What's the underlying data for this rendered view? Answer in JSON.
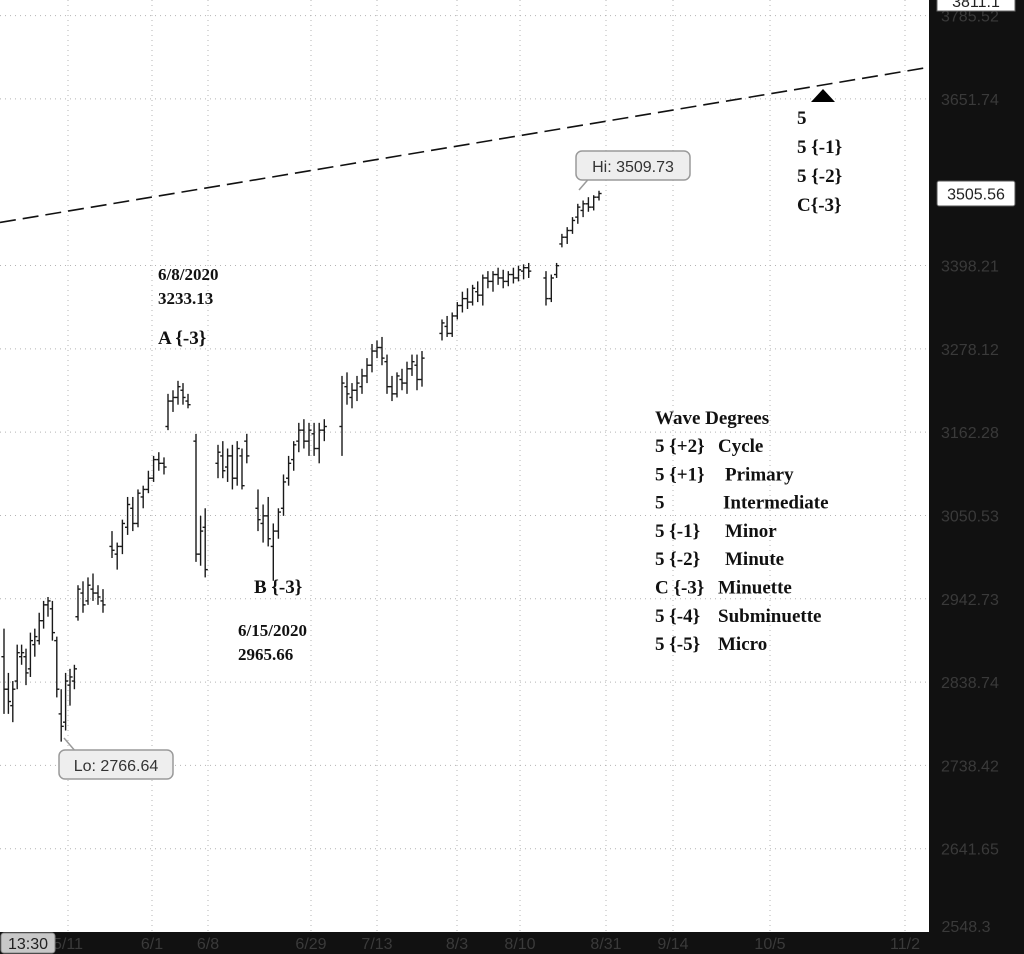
{
  "chart_data": {
    "type": "ohlc",
    "y_axis": {
      "min": 2548.3,
      "max": 3811.1,
      "scale": "log",
      "position": "right",
      "ticks": [
        3785.52,
        3651.74,
        3398.21,
        3278.12,
        3162.28,
        3050.53,
        2942.73,
        2838.74,
        2738.42,
        2641.65
      ],
      "top_label": "3811.1",
      "bottom_label": "2548.3"
    },
    "x_axis": {
      "time_box": "13:30",
      "labels": [
        "5/11",
        "6/1",
        "6/8",
        "6/29",
        "7/13",
        "8/3",
        "8/10",
        "8/31",
        "9/14",
        "10/5",
        "11/2"
      ]
    },
    "grid": true,
    "last_price": "3505.56",
    "high_bubble": "Hi: 3509.73",
    "low_bubble": "Lo: 2766.64",
    "trendline": {
      "style": "dashed",
      "start_y": 3462,
      "end_y": 3702
    },
    "bars": [
      {
        "o": 2870,
        "h": 2905,
        "l": 2800,
        "c": 2830
      },
      {
        "o": 2830,
        "h": 2850,
        "l": 2800,
        "c": 2815
      },
      {
        "o": 2810,
        "h": 2840,
        "l": 2790,
        "c": 2830
      },
      {
        "o": 2840,
        "h": 2885,
        "l": 2830,
        "c": 2875
      },
      {
        "o": 2870,
        "h": 2885,
        "l": 2860,
        "c": 2875
      },
      {
        "o": 2870,
        "h": 2880,
        "l": 2835,
        "c": 2850
      },
      {
        "o": 2855,
        "h": 2900,
        "l": 2845,
        "c": 2890
      },
      {
        "o": 2885,
        "h": 2905,
        "l": 2870,
        "c": 2895
      },
      {
        "o": 2890,
        "h": 2925,
        "l": 2885,
        "c": 2915
      },
      {
        "o": 2915,
        "h": 2940,
        "l": 2905,
        "c": 2935
      },
      {
        "o": 2935,
        "h": 2945,
        "l": 2920,
        "c": 2940
      },
      {
        "o": 2930,
        "h": 2940,
        "l": 2890,
        "c": 2900
      },
      {
        "o": 2890,
        "h": 2895,
        "l": 2820,
        "c": 2830
      },
      {
        "o": 2800,
        "h": 2830,
        "l": 2766.64,
        "c": 2785
      },
      {
        "o": 2790,
        "h": 2850,
        "l": 2780,
        "c": 2840
      },
      {
        "o": 2835,
        "h": 2855,
        "l": 2810,
        "c": 2845
      },
      {
        "o": 2840,
        "h": 2860,
        "l": 2830,
        "c": 2855
      },
      {
        "o": 2920,
        "h": 2960,
        "l": 2915,
        "c": 2955
      },
      {
        "o": 2950,
        "h": 2965,
        "l": 2925,
        "c": 2935
      },
      {
        "o": 2940,
        "h": 2970,
        "l": 2935,
        "c": 2960
      },
      {
        "o": 2955,
        "h": 2975,
        "l": 2940,
        "c": 2950
      },
      {
        "o": 2950,
        "h": 2960,
        "l": 2935,
        "c": 2945
      },
      {
        "o": 2940,
        "h": 2955,
        "l": 2925,
        "c": 2935
      },
      {
        "o": 3010,
        "h": 3030,
        "l": 2995,
        "c": 3005
      },
      {
        "o": 3000,
        "h": 3015,
        "l": 2980,
        "c": 3010
      },
      {
        "o": 3010,
        "h": 3045,
        "l": 3000,
        "c": 3040
      },
      {
        "o": 3035,
        "h": 3075,
        "l": 3025,
        "c": 3065
      },
      {
        "o": 3060,
        "h": 3075,
        "l": 3030,
        "c": 3040
      },
      {
        "o": 3040,
        "h": 3085,
        "l": 3035,
        "c": 3080
      },
      {
        "o": 3075,
        "h": 3090,
        "l": 3060,
        "c": 3085
      },
      {
        "o": 3085,
        "h": 3110,
        "l": 3080,
        "c": 3100
      },
      {
        "o": 3100,
        "h": 3130,
        "l": 3095,
        "c": 3125
      },
      {
        "o": 3125,
        "h": 3135,
        "l": 3110,
        "c": 3120
      },
      {
        "o": 3120,
        "h": 3128,
        "l": 3105,
        "c": 3115
      },
      {
        "o": 3170,
        "h": 3215,
        "l": 3165,
        "c": 3205
      },
      {
        "o": 3205,
        "h": 3220,
        "l": 3190,
        "c": 3210
      },
      {
        "o": 3210,
        "h": 3233.13,
        "l": 3200,
        "c": 3225
      },
      {
        "o": 3220,
        "h": 3230,
        "l": 3200,
        "c": 3210
      },
      {
        "o": 3205,
        "h": 3215,
        "l": 3195,
        "c": 3200
      },
      {
        "o": 3150,
        "h": 3160,
        "l": 2990,
        "c": 3000
      },
      {
        "o": 3000,
        "h": 3050,
        "l": 2985,
        "c": 3030
      },
      {
        "o": 3035,
        "h": 3060,
        "l": 2970,
        "c": 2980
      },
      {
        "o": 3120,
        "h": 3145,
        "l": 3100,
        "c": 3135
      },
      {
        "o": 3130,
        "h": 3150,
        "l": 3100,
        "c": 3110
      },
      {
        "o": 3115,
        "h": 3140,
        "l": 3095,
        "c": 3130
      },
      {
        "o": 3130,
        "h": 3145,
        "l": 3085,
        "c": 3100
      },
      {
        "o": 3100,
        "h": 3150,
        "l": 3090,
        "c": 3140
      },
      {
        "o": 3130,
        "h": 3140,
        "l": 3085,
        "c": 3090
      },
      {
        "o": 3150,
        "h": 3160,
        "l": 3120,
        "c": 3130
      },
      {
        "o": 3060,
        "h": 3085,
        "l": 3030,
        "c": 3045
      },
      {
        "o": 3040,
        "h": 3065,
        "l": 3015,
        "c": 3050
      },
      {
        "o": 3050,
        "h": 3075,
        "l": 3010,
        "c": 3020
      },
      {
        "o": 3010,
        "h": 3040,
        "l": 2965.66,
        "c": 3030
      },
      {
        "o": 3030,
        "h": 3060,
        "l": 3020,
        "c": 3055
      },
      {
        "o": 3060,
        "h": 3105,
        "l": 3050,
        "c": 3095
      },
      {
        "o": 3100,
        "h": 3130,
        "l": 3090,
        "c": 3120
      },
      {
        "o": 3125,
        "h": 3150,
        "l": 3110,
        "c": 3145
      },
      {
        "o": 3150,
        "h": 3175,
        "l": 3135,
        "c": 3165
      },
      {
        "o": 3165,
        "h": 3180,
        "l": 3140,
        "c": 3150
      },
      {
        "o": 3150,
        "h": 3175,
        "l": 3130,
        "c": 3165
      },
      {
        "o": 3160,
        "h": 3175,
        "l": 3130,
        "c": 3140
      },
      {
        "o": 3140,
        "h": 3175,
        "l": 3120,
        "c": 3165
      },
      {
        "o": 3165,
        "h": 3180,
        "l": 3150,
        "c": 3170
      },
      {
        "o": 3170,
        "h": 3240,
        "l": 3130,
        "c": 3230
      },
      {
        "o": 3225,
        "h": 3245,
        "l": 3200,
        "c": 3215
      },
      {
        "o": 3210,
        "h": 3230,
        "l": 3195,
        "c": 3220
      },
      {
        "o": 3220,
        "h": 3240,
        "l": 3205,
        "c": 3230
      },
      {
        "o": 3225,
        "h": 3250,
        "l": 3215,
        "c": 3240
      },
      {
        "o": 3240,
        "h": 3265,
        "l": 3230,
        "c": 3255
      },
      {
        "o": 3255,
        "h": 3285,
        "l": 3245,
        "c": 3275
      },
      {
        "o": 3275,
        "h": 3290,
        "l": 3265,
        "c": 3280
      },
      {
        "o": 3280,
        "h": 3295,
        "l": 3255,
        "c": 3265
      },
      {
        "o": 3260,
        "h": 3270,
        "l": 3215,
        "c": 3225
      },
      {
        "o": 3225,
        "h": 3240,
        "l": 3205,
        "c": 3215
      },
      {
        "o": 3215,
        "h": 3245,
        "l": 3210,
        "c": 3240
      },
      {
        "o": 3235,
        "h": 3250,
        "l": 3220,
        "c": 3230
      },
      {
        "o": 3230,
        "h": 3260,
        "l": 3215,
        "c": 3250
      },
      {
        "o": 3250,
        "h": 3270,
        "l": 3240,
        "c": 3260
      },
      {
        "o": 3255,
        "h": 3270,
        "l": 3220,
        "c": 3235
      },
      {
        "o": 3235,
        "h": 3275,
        "l": 3225,
        "c": 3265
      },
      {
        "o": 3300,
        "h": 3320,
        "l": 3290,
        "c": 3315
      },
      {
        "o": 3310,
        "h": 3325,
        "l": 3295,
        "c": 3300
      },
      {
        "o": 3300,
        "h": 3330,
        "l": 3295,
        "c": 3325
      },
      {
        "o": 3325,
        "h": 3345,
        "l": 3320,
        "c": 3340
      },
      {
        "o": 3340,
        "h": 3360,
        "l": 3330,
        "c": 3350
      },
      {
        "o": 3350,
        "h": 3365,
        "l": 3335,
        "c": 3345
      },
      {
        "o": 3345,
        "h": 3370,
        "l": 3340,
        "c": 3365
      },
      {
        "o": 3360,
        "h": 3375,
        "l": 3345,
        "c": 3355
      },
      {
        "o": 3355,
        "h": 3385,
        "l": 3340,
        "c": 3380
      },
      {
        "o": 3380,
        "h": 3390,
        "l": 3365,
        "c": 3375
      },
      {
        "o": 3375,
        "h": 3390,
        "l": 3360,
        "c": 3385
      },
      {
        "o": 3385,
        "h": 3395,
        "l": 3370,
        "c": 3380
      },
      {
        "o": 3380,
        "h": 3392,
        "l": 3365,
        "c": 3375
      },
      {
        "o": 3375,
        "h": 3390,
        "l": 3368,
        "c": 3385
      },
      {
        "o": 3385,
        "h": 3395,
        "l": 3372,
        "c": 3380
      },
      {
        "o": 3380,
        "h": 3398,
        "l": 3375,
        "c": 3392
      },
      {
        "o": 3390,
        "h": 3400,
        "l": 3378,
        "c": 3395
      },
      {
        "o": 3395,
        "h": 3402,
        "l": 3380,
        "c": 3390
      },
      {
        "o": 3380,
        "h": 3390,
        "l": 3340,
        "c": 3350
      },
      {
        "o": 3350,
        "h": 3385,
        "l": 3345,
        "c": 3380
      },
      {
        "o": 3385,
        "h": 3402,
        "l": 3380,
        "c": 3398
      },
      {
        "o": 3430,
        "h": 3445,
        "l": 3425,
        "c": 3440
      },
      {
        "o": 3440,
        "h": 3455,
        "l": 3430,
        "c": 3450
      },
      {
        "o": 3450,
        "h": 3470,
        "l": 3445,
        "c": 3465
      },
      {
        "o": 3470,
        "h": 3490,
        "l": 3460,
        "c": 3485
      },
      {
        "o": 3480,
        "h": 3495,
        "l": 3470,
        "c": 3490
      },
      {
        "o": 3490,
        "h": 3500,
        "l": 3478,
        "c": 3485
      },
      {
        "o": 3485,
        "h": 3503,
        "l": 3480,
        "c": 3500
      },
      {
        "o": 3500,
        "h": 3509.73,
        "l": 3495,
        "c": 3505.56
      }
    ]
  },
  "annotations": {
    "a_date": "6/8/2020",
    "a_price": "3233.13",
    "a_label": "A {-3}",
    "b_label": "B {-3}",
    "b_date": "6/15/2020",
    "b_price": "2965.66",
    "target_lines": [
      "5",
      "5 {-1}",
      "5 {-2}",
      "C{-3}"
    ]
  },
  "wave_degrees": {
    "title": "Wave Degrees",
    "rows": [
      {
        "num": "5 {+2}",
        "name": "Cycle"
      },
      {
        "num": "5 {+1}",
        "name": "Primary"
      },
      {
        "num": "5",
        "name": "Intermediate"
      },
      {
        "num": "5 {-1}",
        "name": "Minor"
      },
      {
        "num": "5 {-2}",
        "name": "Minute"
      },
      {
        "num": "C {-3}",
        "name": "Minuette"
      },
      {
        "num": "5 {-4}",
        "name": "Subminuette"
      },
      {
        "num": "5 {-5}",
        "name": "Micro"
      }
    ]
  },
  "colors": {
    "bar": "#1a1a1a",
    "grid": "#b4b4b4",
    "axis_bg": "#111111",
    "bubble_bg": "#eeeeee",
    "bubble_border": "#9a9a9a",
    "trendline": "#111111"
  }
}
